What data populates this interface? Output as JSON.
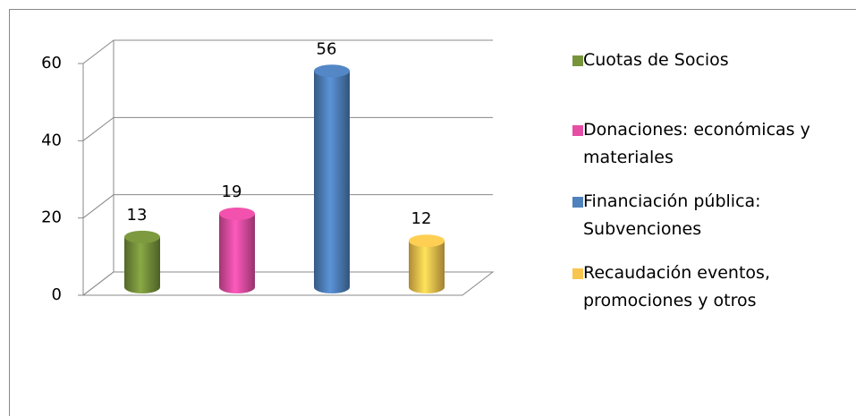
{
  "chart_data": {
    "type": "bar3d",
    "categories": [
      null
    ],
    "series": [
      {
        "name": "Cuotas de Socios",
        "color": "#77933c",
        "values": [
          13
        ]
      },
      {
        "name": "Donaciones: económicas y materiales",
        "color": "#e64ea5",
        "values": [
          19
        ]
      },
      {
        "name": "Financiación pública: Subvenciones",
        "color": "#4f81bd",
        "values": [
          56
        ]
      },
      {
        "name": "Recaudación eventos, promociones y otros",
        "color": "#f8c54f",
        "values": [
          12
        ]
      }
    ],
    "ylim": [
      0,
      60
    ],
    "yticks": [
      0,
      20,
      40,
      60
    ],
    "grid": true,
    "legend": "right"
  }
}
